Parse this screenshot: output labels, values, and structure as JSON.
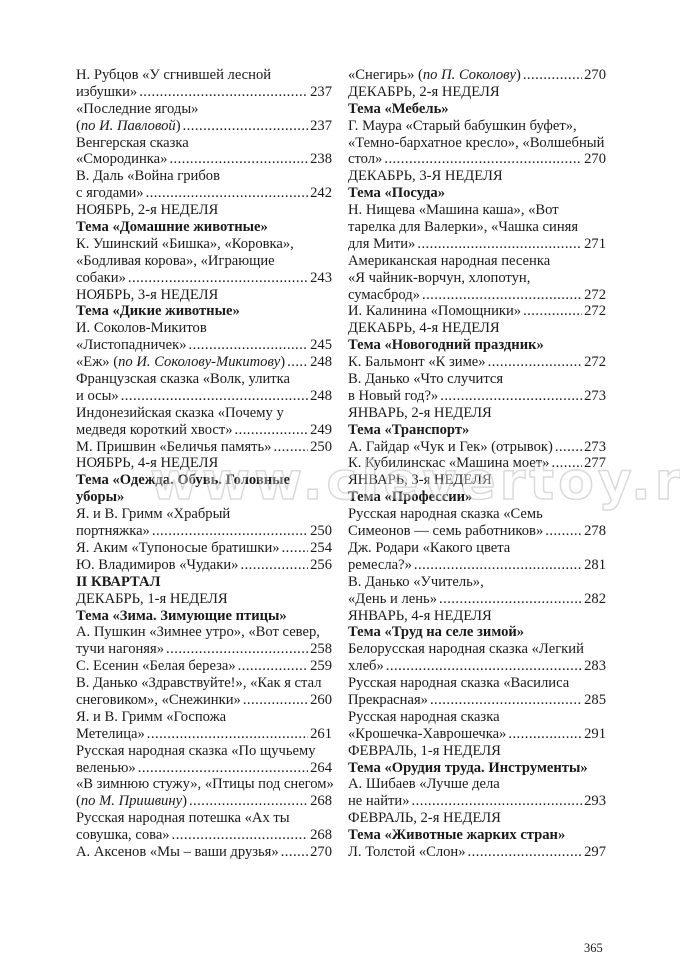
{
  "watermark": "www.clevertoy.ru",
  "page_number": "365",
  "columns": [
    [
      {
        "text": "Н. Рубцов «У сгнившей лесной"
      },
      {
        "text": "избушки»",
        "page": "237"
      },
      {
        "text": "«Последние ягоды»"
      },
      {
        "text": "(",
        "italic": "по И. Павловой",
        "after": ")",
        "page": "237"
      },
      {
        "text": "Венгерская сказка"
      },
      {
        "text": "«Смородинка» ",
        "page": "238"
      },
      {
        "text": "В. Даль «Война грибов"
      },
      {
        "text": "с ягодами»",
        "page": "242"
      },
      {
        "text": "НОЯБРЬ, 2-я НЕДЕЛЯ"
      },
      {
        "text": "Тема «Домашние животные»",
        "bold": true
      },
      {
        "text": "К. Ушинский «Бишка», «Коровка»,"
      },
      {
        "text": "«Бодливая корова», «Играющие"
      },
      {
        "text": "собаки»",
        "page": "243"
      },
      {
        "text": "НОЯБРЬ, 3-я НЕДЕЛЯ"
      },
      {
        "text": "Тема «Дикие животные»",
        "bold": true
      },
      {
        "text": "И. Соколов-Микитов"
      },
      {
        "text": "«Листопадничек» ",
        "page": "245"
      },
      {
        "text": "«Еж» (",
        "italic": "по И. Соколову-Микитову",
        "after": ")",
        "page": "248"
      },
      {
        "text": "Французская сказка «Волк, улитка"
      },
      {
        "text": "и осы»",
        "page": "248"
      },
      {
        "text": "Индонезийская сказка «Почему у"
      },
      {
        "text": "медведя короткий хвост» ",
        "page": "249"
      },
      {
        "text": "М. Пришвин «Беличья память»",
        "page": "250"
      },
      {
        "text": "НОЯБРЬ, 4-я НЕДЕЛЯ"
      },
      {
        "text": "Тема «Одежда. Обувь. Головные",
        "bold": true
      },
      {
        "text": "уборы»",
        "bold": true
      },
      {
        "text": "Я. и В. Гримм «Храбрый"
      },
      {
        "text": "портняжка» ",
        "page": "250"
      },
      {
        "text": "Я. Аким «Тупоносые братишки»",
        "page": "254"
      },
      {
        "text": "Ю. Владимиров «Чудаки»",
        "page": "256"
      },
      {
        "text": "II КВАРТАЛ",
        "bold": true
      },
      {
        "text": "ДЕКАБРЬ, 1-я НЕДЕЛЯ"
      },
      {
        "text": "Тема «Зима. Зимующие птицы»",
        "bold": true
      },
      {
        "text": "А. Пушкин «Зимнее утро», «Вот север,"
      },
      {
        "text": "тучи нагоняя» ",
        "page": "258"
      },
      {
        "text": "С. Есенин «Белая береза»",
        "page": "259"
      },
      {
        "text": "В. Данько «Здравствуйте!», «Как я стал"
      },
      {
        "text": "снеговиком», «Снежинки» ",
        "page": "260"
      },
      {
        "text": "Я. и В. Гримм «Госпожа"
      },
      {
        "text": "Метелица»",
        "page": "261"
      },
      {
        "text": "Русская народная сказка «По щучьему"
      },
      {
        "text": "веленью» ",
        "page": "264"
      },
      {
        "text": "«В зимнюю стужу», «Птицы под снегом»"
      },
      {
        "text": "(",
        "italic": "по М. Пришвину",
        "after": ") ",
        "page": "268"
      },
      {
        "text": "Русская народная потешка «Ах ты"
      },
      {
        "text": "совушка, сова»",
        "page": "268"
      },
      {
        "text": "А. Аксенов «Мы – ваши друзья»",
        "page": "270"
      }
    ],
    [
      {
        "text": "«Снегирь» (",
        "italic": "по П. Соколову",
        "after": ")",
        "page": "270"
      },
      {
        "text": "ДЕКАБРЬ, 2-я НЕДЕЛЯ"
      },
      {
        "text": "Тема «Мебель»",
        "bold": true
      },
      {
        "text": "Г. Маура «Старый бабушкин буфет»,"
      },
      {
        "text": "«Темно-бархатное кресло», «Волшебный"
      },
      {
        "text": "стол» ",
        "page": "270"
      },
      {
        "text": "ДЕКАБРЬ, 3-Я НЕДЕЛЯ"
      },
      {
        "text": "Тема «Посуда»",
        "bold": true
      },
      {
        "text": "Н. Нищева «Машина каша», «Вот"
      },
      {
        "text": "тарелка для Валерки», «Чашка синяя"
      },
      {
        "text": "для Мити» ",
        "page": "271"
      },
      {
        "text": "Американская народная песенка"
      },
      {
        "text": "«Я чайник-ворчун, хлопотун,"
      },
      {
        "text": "сумасброд»",
        "page": "272"
      },
      {
        "text": "И. Калинина «Помощники» ",
        "page": "272"
      },
      {
        "text": "ДЕКАБРЬ, 4-я НЕДЕЛЯ"
      },
      {
        "text": "Тема «Новогодний праздник»",
        "bold": true
      },
      {
        "text": "К. Бальмонт «К зиме» ",
        "page": "272"
      },
      {
        "text": "В. Данько «Что случится"
      },
      {
        "text": "в Новый год?»",
        "page": "273"
      },
      {
        "text": "ЯНВАРЬ, 2-я НЕДЕЛЯ"
      },
      {
        "text": "Тема «Транспорт»",
        "bold": true
      },
      {
        "text": "А. Гайдар «Чук и Гек» (отрывок)",
        "page": "273"
      },
      {
        "text": "К. Кубилинскас «Машина моет»",
        "page": "277"
      },
      {
        "text": "ЯНВАРЬ, 3-я НЕДЕЛЯ"
      },
      {
        "text": "Тема «Профессии»",
        "bold": true
      },
      {
        "text": "Русская народная сказка «Семь"
      },
      {
        "text": "Симеонов — семь работников»",
        "page": "278"
      },
      {
        "text": "Дж. Родари «Какого цвета"
      },
      {
        "text": "ремесла?» ",
        "page": "281"
      },
      {
        "text": "В. Данько «Учитель»,"
      },
      {
        "text": "«День и лень» ",
        "page": "282"
      },
      {
        "text": "ЯНВАРЬ, 4-я НЕДЕЛЯ"
      },
      {
        "text": "Тема «Труд на селе зимой»",
        "bold": true
      },
      {
        "text": "Белорусская народная сказка «Легкий"
      },
      {
        "text": "хлеб»",
        "page": "283"
      },
      {
        "text": "Русская народная сказка «Василиса"
      },
      {
        "text": "Прекрасная»",
        "page": "285"
      },
      {
        "text": "Русская народная сказка"
      },
      {
        "text": "«Крошечка-Хаврошечка»",
        "page": "291"
      },
      {
        "text": "ФЕВРАЛЬ, 1-я НЕДЕЛЯ"
      },
      {
        "text": "Тема «Орудия труда. Инструменты»",
        "bold": true
      },
      {
        "text": "А. Шибаев «Лучше дела"
      },
      {
        "text": "не найти»",
        "page": "293"
      },
      {
        "text": "ФЕВРАЛЬ, 2-я НЕДЕЛЯ"
      },
      {
        "text": "Тема «Животные жарких стран»",
        "bold": true
      },
      {
        "text": "Л. Толстой «Слон» ",
        "page": "297"
      }
    ]
  ]
}
